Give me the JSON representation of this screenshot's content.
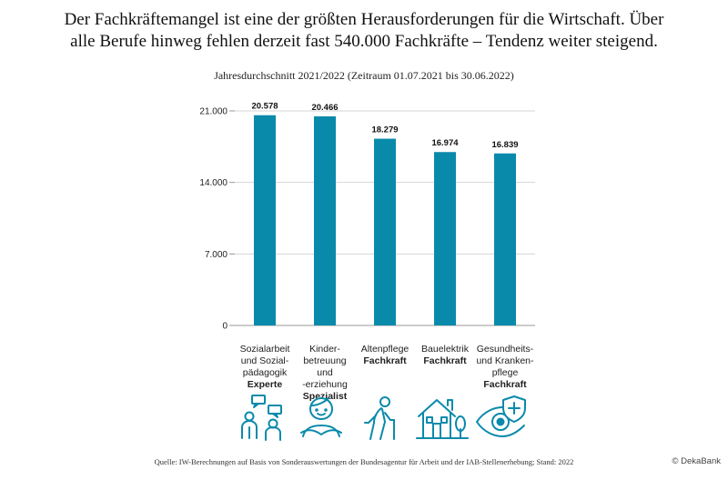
{
  "headline": {
    "line1": "Der Fachkräftemangel ist eine der größten Herausforderungen für die Wirtschaft. Über",
    "line2": "alle Berufe hinweg fehlen derzeit fast 540.000 Fachkräfte – Tendenz weiter steigend."
  },
  "subtitle": "Jahresdurchschnitt 2021/2022 (Zeitraum 01.07.2021 bis 30.06.2022)",
  "chart_data": {
    "type": "bar",
    "categories": [
      {
        "lines": [
          "Sozialarbeit",
          "und Sozial-",
          "pädagogik"
        ],
        "bold": "Experte"
      },
      {
        "lines": [
          "Kinder-",
          "betreuung",
          "und",
          "-erziehung"
        ],
        "bold": "Spezialist"
      },
      {
        "lines": [
          "Altenpflege"
        ],
        "bold": "Fachkraft"
      },
      {
        "lines": [
          "Bauelektrik"
        ],
        "bold": "Fachkraft"
      },
      {
        "lines": [
          "Gesundheits-",
          "und Kranken-",
          "pflege"
        ],
        "bold": "Fachkraft"
      }
    ],
    "values": [
      20578,
      20466,
      18279,
      16974,
      16839
    ],
    "value_labels": [
      "20.578",
      "20.466",
      "18.279",
      "16.974",
      "16.839"
    ],
    "yticks": [
      0,
      7000,
      14000,
      21000
    ],
    "ytick_labels": [
      "0",
      "7.000",
      "14.000",
      "21.000"
    ],
    "ylim": [
      0,
      21000
    ],
    "grid": true,
    "bar_color": "#0a8aab"
  },
  "icons": [
    "experts-icon",
    "child-care-icon",
    "elderly-care-icon",
    "house-icon",
    "health-eye-icon"
  ],
  "icon_color": "#0a8aab",
  "source": "Quelle: IW-Berechnungen auf Basis von Sonderauswertungen der Bundesagentur für Arbeit und der IAB-Stellenerhebung; Stand: 2022",
  "brand": "© DekaBank"
}
